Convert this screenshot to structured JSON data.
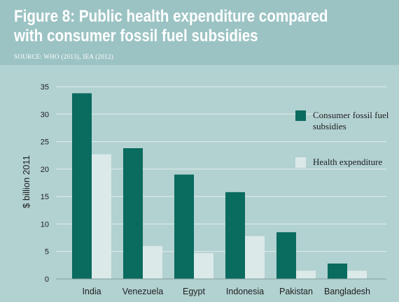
{
  "header": {
    "title": "Figure 8: Public health expenditure compared with consumer fossil fuel subsidies",
    "source": "SOURCE: WHO (2013), IEA (2012)"
  },
  "colors": {
    "page_background": "#9cc3c4",
    "plot_background": "#b2d1d1",
    "fossil": "#0a6b5f",
    "health": "#dbe9e8",
    "gridline": "#e3efee",
    "text": "#1e1e1e"
  },
  "chart_data": {
    "type": "bar",
    "title": "Figure 8: Public health expenditure compared with consumer fossil fuel subsidies",
    "xlabel": "",
    "ylabel": "$ billion 2011",
    "ylim": [
      0,
      35
    ],
    "yticks": [
      0,
      5,
      10,
      15,
      20,
      25,
      30,
      35
    ],
    "grid": true,
    "legend_position": "right",
    "categories": [
      "India",
      "Venezuela",
      "Egypt",
      "Indonesia",
      "Pakistan",
      "Bangladesh"
    ],
    "series": [
      {
        "name": "Consumer fossil fuel subsidies",
        "color": "#0a6b5f",
        "values": [
          33.8,
          23.8,
          19.0,
          15.8,
          8.5,
          2.8
        ]
      },
      {
        "name": "Health expenditure",
        "color": "#dbe9e8",
        "values": [
          22.7,
          6.0,
          4.7,
          7.8,
          1.5,
          1.5
        ]
      }
    ]
  }
}
